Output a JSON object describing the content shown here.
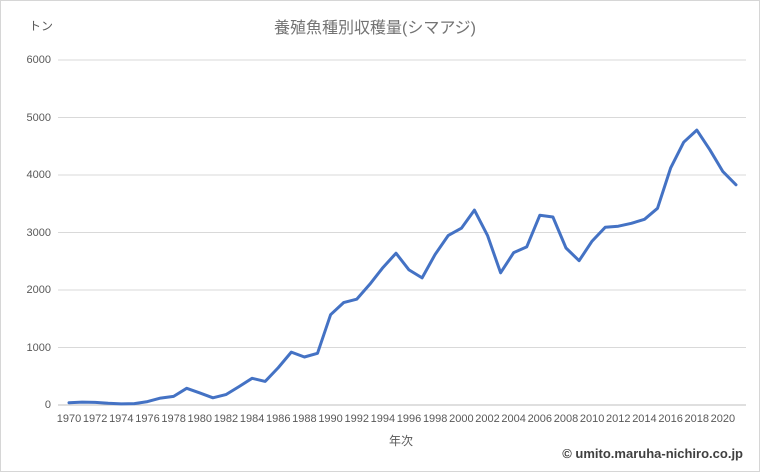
{
  "page": {
    "background_color": "#ffffff",
    "border_color": "#d6d6d6"
  },
  "header": {
    "title": "養殖魚種別収穫量(シマアジ)",
    "y_unit_label": "トン"
  },
  "footer": {
    "copyright": "© umito.maruha-nichiro.co.jp"
  },
  "chart_data": {
    "type": "line",
    "title": "養殖魚種別収穫量(シマアジ)",
    "xlabel": "年次",
    "ylabel": "トン",
    "ylim": [
      0,
      6000
    ],
    "ytick_step": 1000,
    "ytick_labels": [
      "0",
      "1000",
      "2000",
      "3000",
      "4000",
      "5000",
      "6000"
    ],
    "xtick_labels": [
      "1970",
      "1972",
      "1974",
      "1976",
      "1978",
      "1980",
      "1982",
      "1984",
      "1986",
      "1988",
      "1990",
      "1992",
      "1994",
      "1996",
      "1998",
      "2000",
      "2002",
      "2004",
      "2006",
      "2008",
      "2010",
      "2012",
      "2014",
      "2016",
      "2018",
      "2020"
    ],
    "grid": true,
    "legend": false,
    "line_color": "#4472C4",
    "gridline_color": "#d9d9d9",
    "axis_line_color": "#bfbfbf",
    "x": [
      1970,
      1971,
      1972,
      1973,
      1974,
      1975,
      1976,
      1977,
      1978,
      1979,
      1980,
      1981,
      1982,
      1983,
      1984,
      1985,
      1986,
      1987,
      1988,
      1989,
      1990,
      1991,
      1992,
      1993,
      1994,
      1995,
      1996,
      1997,
      1998,
      1999,
      2000,
      2001,
      2002,
      2003,
      2004,
      2005,
      2006,
      2007,
      2008,
      2009,
      2010,
      2011,
      2012,
      2013,
      2014,
      2015,
      2016,
      2017,
      2018,
      2019,
      2020,
      2021
    ],
    "series": [
      {
        "name": "シマアジ",
        "values": [
          40,
          50,
          45,
          30,
          20,
          25,
          60,
          120,
          150,
          290,
          210,
          125,
          180,
          320,
          465,
          410,
          650,
          920,
          835,
          900,
          1570,
          1780,
          1840,
          2100,
          2390,
          2640,
          2350,
          2210,
          2620,
          2950,
          3075,
          3390,
          2950,
          2300,
          2650,
          2750,
          3300,
          3270,
          2730,
          2510,
          2850,
          3090,
          3110,
          3160,
          3230,
          3420,
          4120,
          4570,
          4780,
          4440,
          4060,
          3830
        ]
      }
    ]
  }
}
